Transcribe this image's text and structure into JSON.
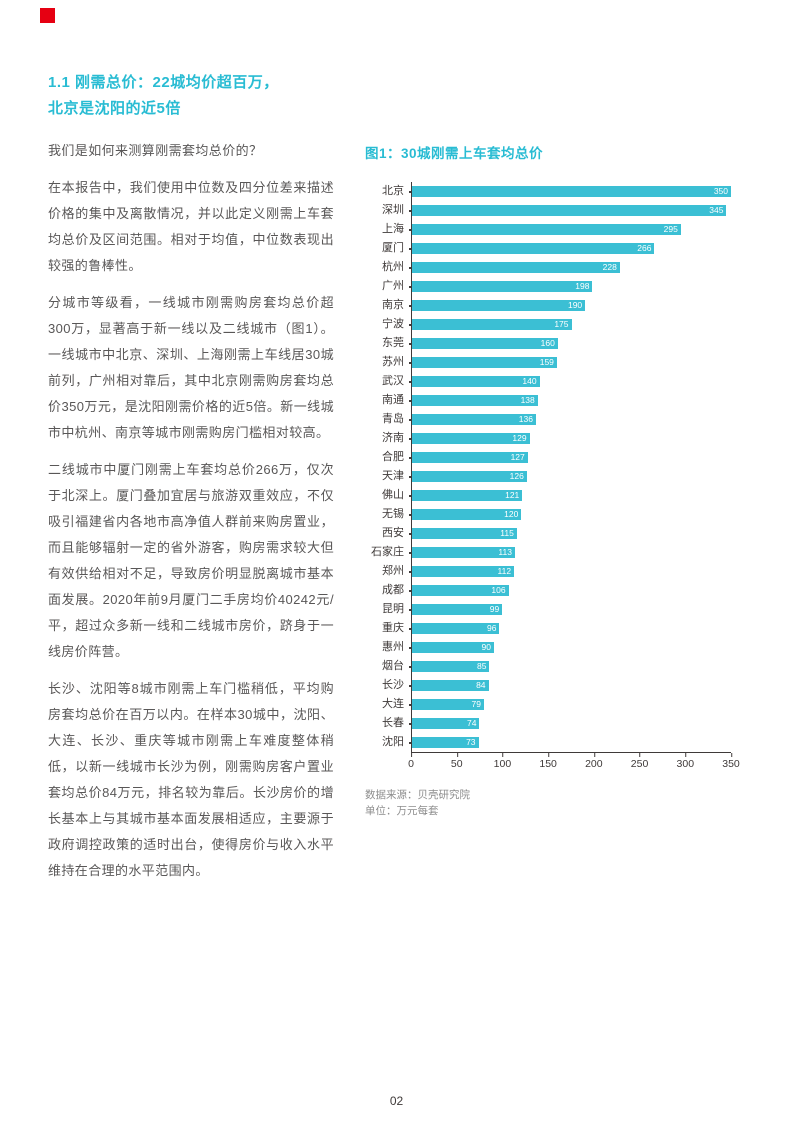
{
  "colors": {
    "accent_cyan": "#29bcd3",
    "accent_red": "#e60012",
    "bar_fill": "#3bbfd4",
    "body_text": "#595757"
  },
  "section": {
    "title_line1": "1.1 刚需总价：22城均价超百万，",
    "title_line2": "北京是沈阳的近5倍",
    "paragraphs": [
      "我们是如何来测算刚需套均总价的？",
      "在本报告中，我们使用中位数及四分位差来描述价格的集中及离散情况，并以此定义刚需上车套均总价及区间范围。相对于均值，中位数表现出较强的鲁棒性。",
      "分城市等级看，一线城市刚需购房套均总价超300万，显著高于新一线以及二线城市（图1）。一线城市中北京、深圳、上海刚需上车线居30城前列，广州相对靠后，其中北京刚需购房套均总价350万元，是沈阳刚需价格的近5倍。新一线城市中杭州、南京等城市刚需购房门槛相对较高。",
      "二线城市中厦门刚需上车套均总价266万，仅次于北深上。厦门叠加宜居与旅游双重效应，不仅吸引福建省内各地市高净值人群前来购房置业，而且能够辐射一定的省外游客，购房需求较大但有效供给相对不足，导致房价明显脱离城市基本面发展。2020年前9月厦门二手房均价40242元/平，超过众多新一线和二线城市房价，跻身于一线房价阵营。",
      "长沙、沈阳等8城市刚需上车门槛稍低，平均购房套均总价在百万以内。在样本30城中，沈阳、大连、长沙、重庆等城市刚需上车难度整体稍低，以新一线城市长沙为例，刚需购房客户置业套均总价84万元，排名较为靠后。长沙房价的增长基本上与其城市基本面发展相适应，主要源于政府调控政策的适时出台，使得房价与收入水平维持在合理的水平范围内。"
    ]
  },
  "figure": {
    "title": "图1：30城刚需上车套均总价",
    "source": "数据来源：贝壳研究院",
    "unit": "单位：万元每套"
  },
  "chart_data": {
    "type": "bar",
    "orientation": "horizontal",
    "title": "图1：30城刚需上车套均总价",
    "categories": [
      "北京",
      "深圳",
      "上海",
      "厦门",
      "杭州",
      "广州",
      "南京",
      "宁波",
      "东莞",
      "苏州",
      "武汉",
      "南通",
      "青岛",
      "济南",
      "合肥",
      "天津",
      "佛山",
      "无锡",
      "西安",
      "石家庄",
      "郑州",
      "成都",
      "昆明",
      "重庆",
      "惠州",
      "烟台",
      "长沙",
      "大连",
      "长春",
      "沈阳"
    ],
    "values": [
      350,
      345,
      295,
      266,
      228,
      198,
      190,
      175,
      160,
      159,
      140,
      138,
      136,
      129,
      127,
      126,
      121,
      120,
      115,
      113,
      112,
      106,
      99,
      96,
      90,
      85,
      84,
      79,
      74,
      73
    ],
    "xlim": [
      0,
      350
    ],
    "x_ticks": [
      0,
      50,
      100,
      150,
      200,
      250,
      300,
      350
    ],
    "xlabel": "",
    "ylabel": "",
    "grid": false,
    "legend": false,
    "value_labels": "inside-end, white"
  },
  "footer": {
    "page_number": "02"
  }
}
